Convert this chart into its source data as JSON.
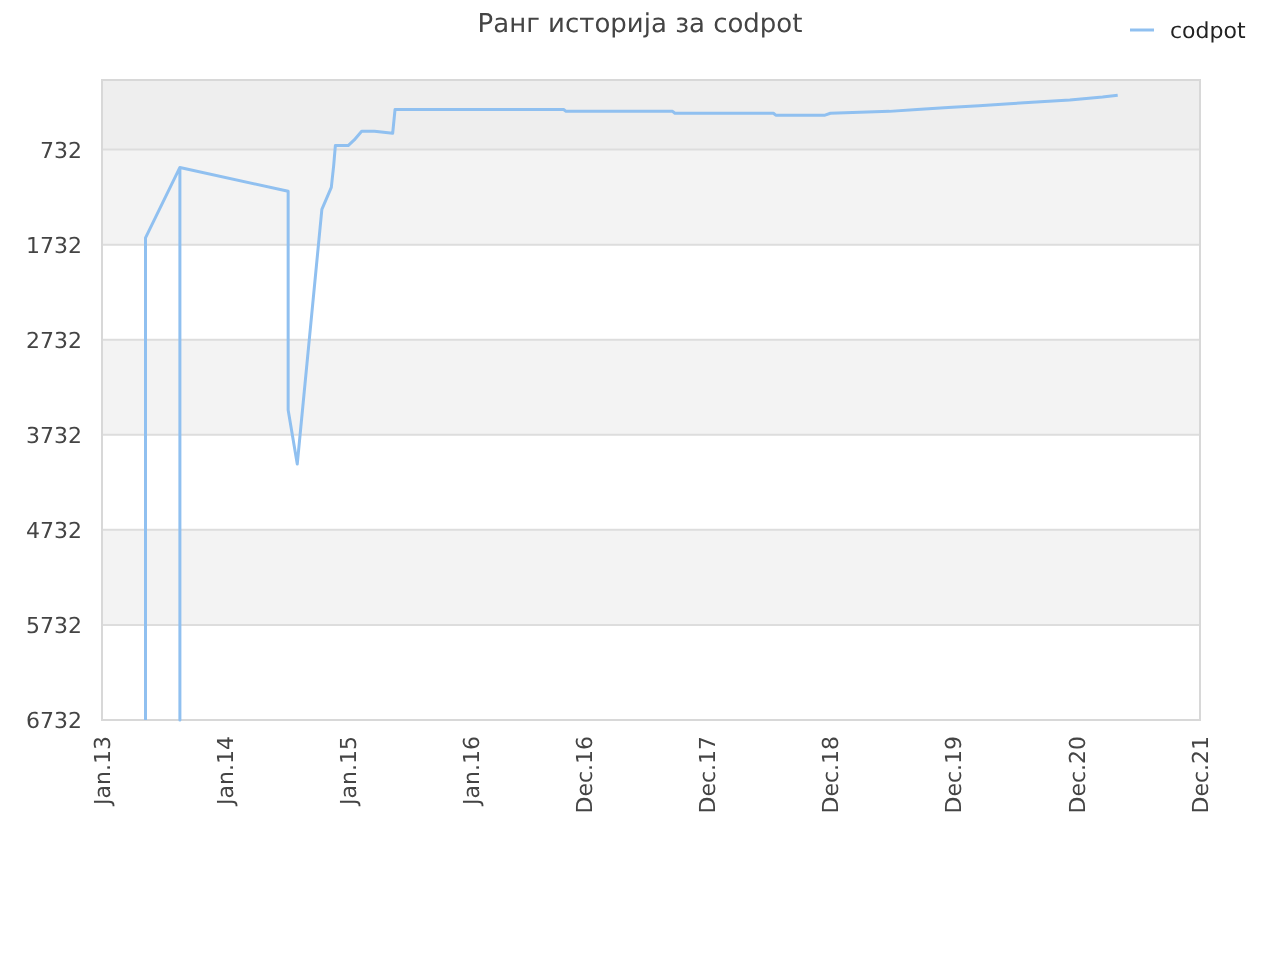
{
  "chart_data": {
    "type": "line",
    "title": "Ранг историја за codpot",
    "x": [
      "2013-05-10",
      "2013-05-10",
      "2013-08-20",
      "2013-08-20",
      "2013-08-20",
      "2014-07-07",
      "2014-07-07",
      "2014-08-03",
      "2014-10-15",
      "2014-11-12",
      "2014-11-19",
      "2014-11-24",
      "2015-01-01",
      "2015-01-19",
      "2015-02-10",
      "2015-03-20",
      "2015-05-13",
      "2015-05-20",
      "2016-10-01",
      "2016-10-08",
      "2017-08-20",
      "2017-08-27",
      "2018-06-15",
      "2018-06-22",
      "2018-11-15",
      "2018-12-01",
      "2019-05-25",
      "2019-08-15",
      "2019-11-15",
      "2020-02-15",
      "2020-05-15",
      "2020-08-15",
      "2020-11-10",
      "2021-02-15",
      "2021-04-01"
    ],
    "series": [
      {
        "name": "codpot",
        "color": "#90c0f0",
        "values": [
          6732,
          1660,
          920,
          6732,
          920,
          1170,
          3470,
          4040,
          1360,
          1130,
          900,
          690,
          690,
          630,
          540,
          540,
          560,
          310,
          310,
          330,
          330,
          350,
          350,
          370,
          370,
          350,
          330,
          310,
          290,
          270,
          250,
          230,
          210,
          180,
          160
        ]
      }
    ],
    "xlim": [
      "2013-01-01",
      "2021-12-01"
    ],
    "xticks": [
      {
        "value": "2013-01-01",
        "label": "Jan.13"
      },
      {
        "value": "2014-01-01",
        "label": "Jan.14"
      },
      {
        "value": "2015-01-01",
        "label": "Jan.15"
      },
      {
        "value": "2016-01-01",
        "label": "Jan.16"
      },
      {
        "value": "2016-12-01",
        "label": "Dec.16"
      },
      {
        "value": "2017-12-01",
        "label": "Dec.17"
      },
      {
        "value": "2018-12-01",
        "label": "Dec.18"
      },
      {
        "value": "2019-12-01",
        "label": "Dec.19"
      },
      {
        "value": "2020-12-01",
        "label": "Dec.20"
      },
      {
        "value": "2021-12-01",
        "label": "Dec.21"
      }
    ],
    "ylim": [
      6732,
      0
    ],
    "yticks": [
      732,
      1732,
      2732,
      3732,
      4732,
      5732,
      6732
    ],
    "bands": [
      {
        "axis": "y",
        "from": 0,
        "to": 732,
        "color": "#eeeeee"
      }
    ],
    "grid": "y",
    "legend": "top right",
    "marker": "none",
    "line_style": "solid"
  }
}
